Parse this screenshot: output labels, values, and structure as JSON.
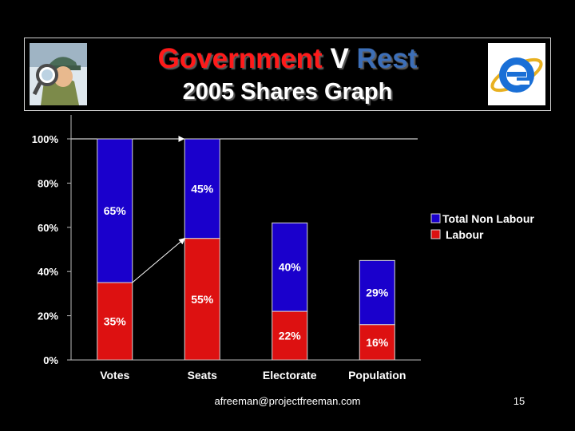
{
  "title": {
    "word1": "Government",
    "word2": "V",
    "word3": "Rest",
    "subtitle": "2005 Shares Graph",
    "colors": {
      "word1": "#ff1a1a",
      "word2": "#ffffff",
      "word3": "#3d6fb8"
    }
  },
  "images": {
    "left": "detective-magnifier-icon",
    "right": "internet-explorer-logo-icon"
  },
  "chart_data": {
    "type": "bar",
    "stacked": true,
    "categories": [
      "Votes",
      "Seats",
      "Electorate",
      "Population"
    ],
    "series": [
      {
        "name": "Labour",
        "color": "#dd1111",
        "values": [
          35,
          55,
          22,
          16
        ],
        "labels": [
          "35%",
          "55%",
          "22%",
          "16%"
        ]
      },
      {
        "name": "Total Non Labour",
        "color": "#1a00cc",
        "values": [
          65,
          45,
          40,
          29
        ],
        "labels": [
          "65%",
          "45%",
          "40%",
          "29%"
        ]
      }
    ],
    "ylim": [
      0,
      100
    ],
    "yticks": [
      0,
      20,
      40,
      60,
      80,
      100
    ],
    "ytick_labels": [
      "0%",
      "20%",
      "40%",
      "60%",
      "80%",
      "100%"
    ],
    "legend": {
      "placement": "right",
      "entries": [
        {
          "label": "Total Non Labour",
          "color": "#1a00cc"
        },
        {
          "label": "Labour",
          "color": "#dd1111"
        }
      ]
    },
    "annotations": {
      "reference_line_value": 100,
      "arrow_from": {
        "category": "Votes",
        "value": 35
      },
      "arrow_to": {
        "category": "Seats",
        "value": 55
      },
      "ref_arrow_to": {
        "category": "Seats",
        "value": 100
      }
    }
  },
  "footer": {
    "email": "afreeman@projectfreeman.com",
    "page": "15"
  }
}
